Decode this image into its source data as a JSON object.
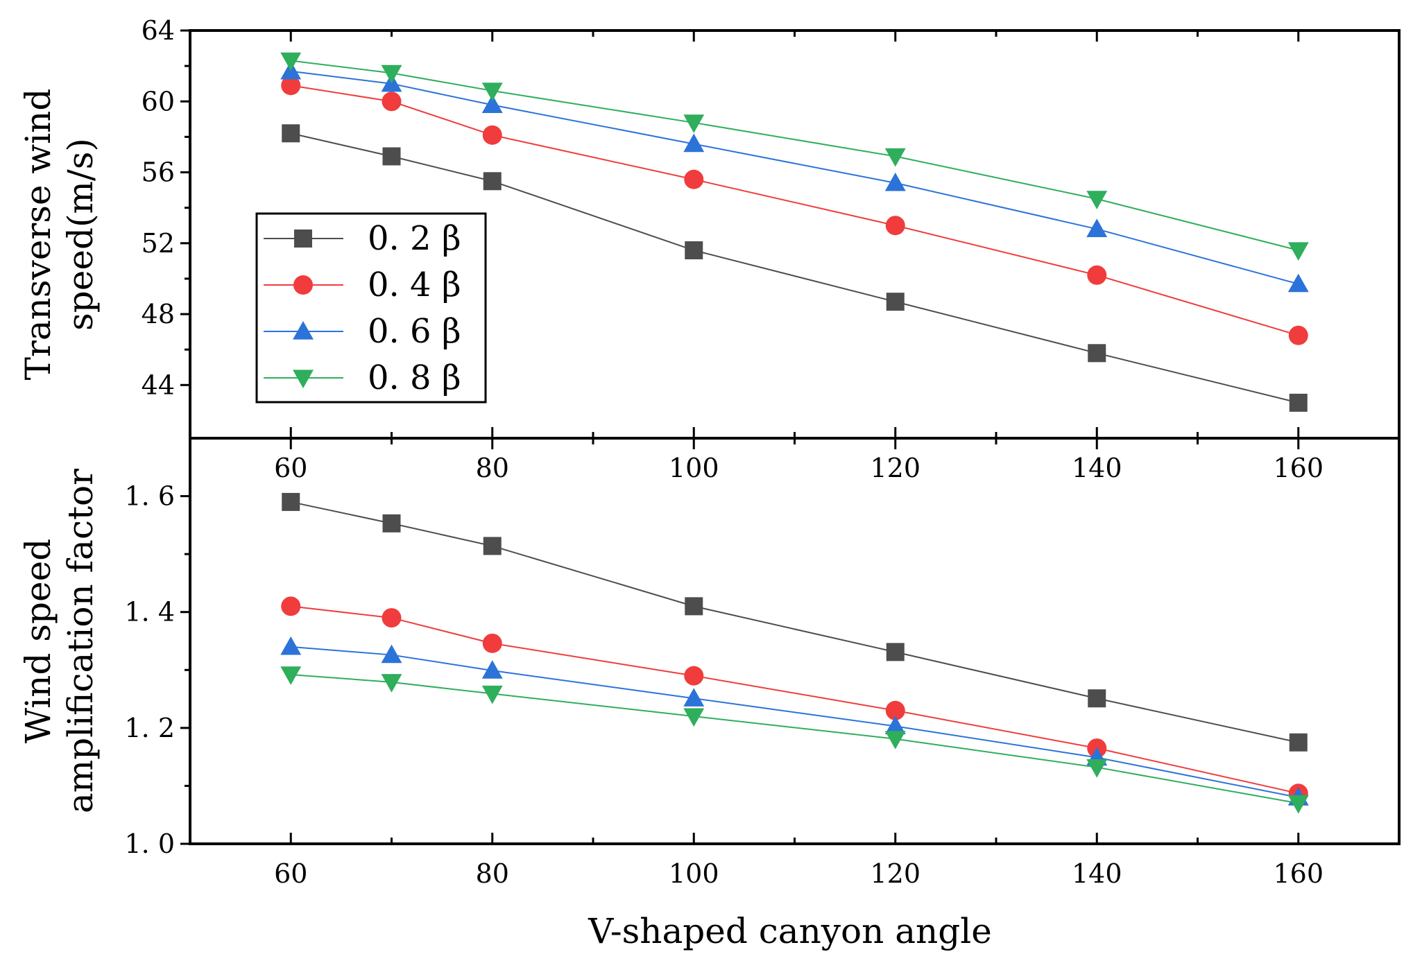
{
  "x_axis": {
    "title": "V-shaped canyon angle",
    "ticks": [
      60,
      80,
      100,
      120,
      140,
      160
    ],
    "lim": [
      50,
      170
    ]
  },
  "legend_labels": [
    "0. 2 β",
    "0. 4 β",
    "0. 6 β",
    "0. 8 β"
  ],
  "chart_data": [
    {
      "type": "line",
      "panel": "top",
      "ylabel": [
        "Transverse wind",
        "speed(m/s)"
      ],
      "xlabel": "V-shaped canyon angle",
      "x": [
        60,
        70,
        80,
        100,
        120,
        140,
        160
      ],
      "xlim": [
        50,
        170
      ],
      "ylim": [
        41,
        64
      ],
      "yticks": [
        44,
        48,
        52,
        56,
        60,
        64
      ],
      "ytick_labels": [
        "44",
        "48",
        "52",
        "56",
        "60",
        "64"
      ],
      "grid": false,
      "legend": "center-left",
      "series": [
        {
          "name": "0. 2 β",
          "color": "#4d4d4d",
          "marker": "square",
          "values": [
            58.2,
            56.9,
            55.5,
            51.6,
            48.7,
            45.8,
            43.0
          ]
        },
        {
          "name": "0. 4 β",
          "color": "#f03c3c",
          "marker": "circle",
          "values": [
            60.9,
            60.0,
            58.1,
            55.6,
            53.0,
            50.2,
            46.8
          ]
        },
        {
          "name": "0. 6 β",
          "color": "#2b73d9",
          "marker": "triangle-up",
          "values": [
            61.7,
            61.0,
            59.8,
            57.6,
            55.4,
            52.8,
            49.7
          ]
        },
        {
          "name": "0. 8 β",
          "color": "#2fae5c",
          "marker": "triangle-down",
          "values": [
            62.3,
            61.6,
            60.6,
            58.8,
            56.9,
            54.5,
            51.6
          ]
        }
      ]
    },
    {
      "type": "line",
      "panel": "bottom",
      "ylabel": [
        "Wind speed",
        "amplification factor"
      ],
      "xlabel": "V-shaped canyon angle",
      "x": [
        60,
        70,
        80,
        100,
        120,
        140,
        160
      ],
      "xlim": [
        50,
        170
      ],
      "ylim": [
        1.0,
        1.7
      ],
      "yticks": [
        1.0,
        1.2,
        1.4,
        1.6
      ],
      "ytick_labels": [
        "1. 0",
        "1. 2",
        "1. 4",
        "1. 6"
      ],
      "grid": false,
      "series": [
        {
          "name": "0. 2 β",
          "color": "#4d4d4d",
          "marker": "square",
          "values": [
            1.59,
            1.553,
            1.514,
            1.41,
            1.331,
            1.251,
            1.175
          ]
        },
        {
          "name": "0. 4 β",
          "color": "#f03c3c",
          "marker": "circle",
          "values": [
            1.41,
            1.39,
            1.346,
            1.29,
            1.23,
            1.165,
            1.087
          ]
        },
        {
          "name": "0. 6 β",
          "color": "#2b73d9",
          "marker": "triangle-up",
          "values": [
            1.34,
            1.326,
            1.299,
            1.251,
            1.203,
            1.149,
            1.08
          ]
        },
        {
          "name": "0. 8 β",
          "color": "#2fae5c",
          "marker": "triangle-down",
          "values": [
            1.292,
            1.279,
            1.259,
            1.22,
            1.181,
            1.132,
            1.07
          ]
        }
      ]
    }
  ]
}
